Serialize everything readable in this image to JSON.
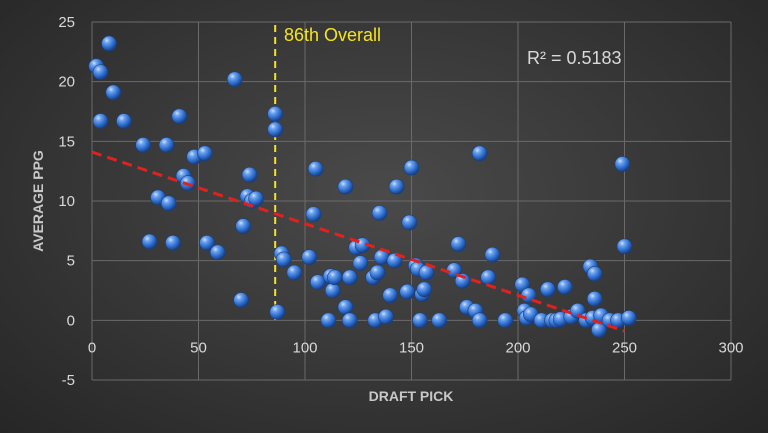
{
  "chart_data": {
    "type": "scatter",
    "title": "",
    "xlabel": "DRAFT PICK",
    "ylabel": "AVERAGE PPG",
    "xlim": [
      0,
      300
    ],
    "ylim": [
      -5,
      25
    ],
    "xticks": [
      0,
      50,
      100,
      150,
      200,
      250,
      300
    ],
    "yticks": [
      -5,
      0,
      5,
      10,
      15,
      20,
      25
    ],
    "grid": true,
    "legend": "none",
    "colors": {
      "point": "#4a86d8",
      "trendline": "#e0221f",
      "marker_line": "#f5e320",
      "marker_text": "#f5e320",
      "r2_text": "#d9d9d9"
    },
    "points": [
      {
        "x": 2,
        "y": 21.3
      },
      {
        "x": 4,
        "y": 20.8
      },
      {
        "x": 4,
        "y": 16.7
      },
      {
        "x": 8,
        "y": 23.2
      },
      {
        "x": 10,
        "y": 19.1
      },
      {
        "x": 15,
        "y": 16.7
      },
      {
        "x": 24,
        "y": 14.7
      },
      {
        "x": 27,
        "y": 6.6
      },
      {
        "x": 31,
        "y": 10.3
      },
      {
        "x": 35,
        "y": 14.7
      },
      {
        "x": 36,
        "y": 9.8
      },
      {
        "x": 38,
        "y": 6.5
      },
      {
        "x": 41,
        "y": 17.1
      },
      {
        "x": 43,
        "y": 12.1
      },
      {
        "x": 45,
        "y": 11.5
      },
      {
        "x": 48,
        "y": 13.7
      },
      {
        "x": 53,
        "y": 14.0
      },
      {
        "x": 54,
        "y": 6.5
      },
      {
        "x": 59,
        "y": 5.7
      },
      {
        "x": 67,
        "y": 20.2
      },
      {
        "x": 70,
        "y": 1.7
      },
      {
        "x": 71,
        "y": 7.9
      },
      {
        "x": 73,
        "y": 10.4
      },
      {
        "x": 74,
        "y": 12.2
      },
      {
        "x": 75,
        "y": 10.0
      },
      {
        "x": 77,
        "y": 10.2
      },
      {
        "x": 86,
        "y": 17.3
      },
      {
        "x": 86,
        "y": 16.0
      },
      {
        "x": 87,
        "y": 0.7
      },
      {
        "x": 89,
        "y": 5.6
      },
      {
        "x": 90,
        "y": 5.1
      },
      {
        "x": 95,
        "y": 4.0
      },
      {
        "x": 102,
        "y": 5.3
      },
      {
        "x": 104,
        "y": 8.9
      },
      {
        "x": 105,
        "y": 12.7
      },
      {
        "x": 106,
        "y": 3.2
      },
      {
        "x": 111,
        "y": 0.0
      },
      {
        "x": 112,
        "y": 3.7
      },
      {
        "x": 113,
        "y": 2.5
      },
      {
        "x": 114,
        "y": 3.6
      },
      {
        "x": 119,
        "y": 11.2
      },
      {
        "x": 119,
        "y": 1.1
      },
      {
        "x": 121,
        "y": 0.0
      },
      {
        "x": 121,
        "y": 3.6
      },
      {
        "x": 124,
        "y": 6.1
      },
      {
        "x": 126,
        "y": 4.8
      },
      {
        "x": 127,
        "y": 6.3
      },
      {
        "x": 132,
        "y": 3.6
      },
      {
        "x": 133,
        "y": 0.0
      },
      {
        "x": 134,
        "y": 4.0
      },
      {
        "x": 135,
        "y": 9.0
      },
      {
        "x": 136,
        "y": 5.3
      },
      {
        "x": 138,
        "y": 0.3
      },
      {
        "x": 140,
        "y": 2.1
      },
      {
        "x": 142,
        "y": 5.0
      },
      {
        "x": 143,
        "y": 11.2
      },
      {
        "x": 148,
        "y": 2.4
      },
      {
        "x": 149,
        "y": 8.2
      },
      {
        "x": 150,
        "y": 12.8
      },
      {
        "x": 152,
        "y": 4.6
      },
      {
        "x": 153,
        "y": 4.3
      },
      {
        "x": 154,
        "y": 0.0
      },
      {
        "x": 155,
        "y": 2.2
      },
      {
        "x": 156,
        "y": 2.6
      },
      {
        "x": 157,
        "y": 4.0
      },
      {
        "x": 163,
        "y": 0.0
      },
      {
        "x": 170,
        "y": 4.2
      },
      {
        "x": 172,
        "y": 6.4
      },
      {
        "x": 174,
        "y": 3.3
      },
      {
        "x": 176,
        "y": 1.1
      },
      {
        "x": 180,
        "y": 0.8
      },
      {
        "x": 182,
        "y": 0.0
      },
      {
        "x": 182,
        "y": 14.0
      },
      {
        "x": 186,
        "y": 3.6
      },
      {
        "x": 188,
        "y": 5.5
      },
      {
        "x": 194,
        "y": 0.0
      },
      {
        "x": 202,
        "y": 3.0
      },
      {
        "x": 203,
        "y": 0.8
      },
      {
        "x": 204,
        "y": 0.2
      },
      {
        "x": 205,
        "y": 2.1
      },
      {
        "x": 206,
        "y": 0.5
      },
      {
        "x": 211,
        "y": 0.0
      },
      {
        "x": 214,
        "y": 2.6
      },
      {
        "x": 216,
        "y": 0.0
      },
      {
        "x": 218,
        "y": 0.0
      },
      {
        "x": 220,
        "y": 0.1
      },
      {
        "x": 222,
        "y": 2.8
      },
      {
        "x": 225,
        "y": 0.3
      },
      {
        "x": 228,
        "y": 0.8
      },
      {
        "x": 232,
        "y": 0.0
      },
      {
        "x": 234,
        "y": 4.5
      },
      {
        "x": 235,
        "y": 0.2
      },
      {
        "x": 236,
        "y": 3.9
      },
      {
        "x": 236,
        "y": 1.8
      },
      {
        "x": 238,
        "y": -0.8
      },
      {
        "x": 239,
        "y": 0.4
      },
      {
        "x": 243,
        "y": 0.0
      },
      {
        "x": 247,
        "y": 0.0
      },
      {
        "x": 249,
        "y": 13.1
      },
      {
        "x": 250,
        "y": 6.2
      },
      {
        "x": 252,
        "y": 0.2
      }
    ],
    "trendline": {
      "x0": 0,
      "y0": 14.1,
      "x1": 250,
      "y1": -0.9
    },
    "marker": {
      "x": 86,
      "label": "86th Overall"
    },
    "annotations": {
      "r2": "R² = 0.5183"
    }
  }
}
